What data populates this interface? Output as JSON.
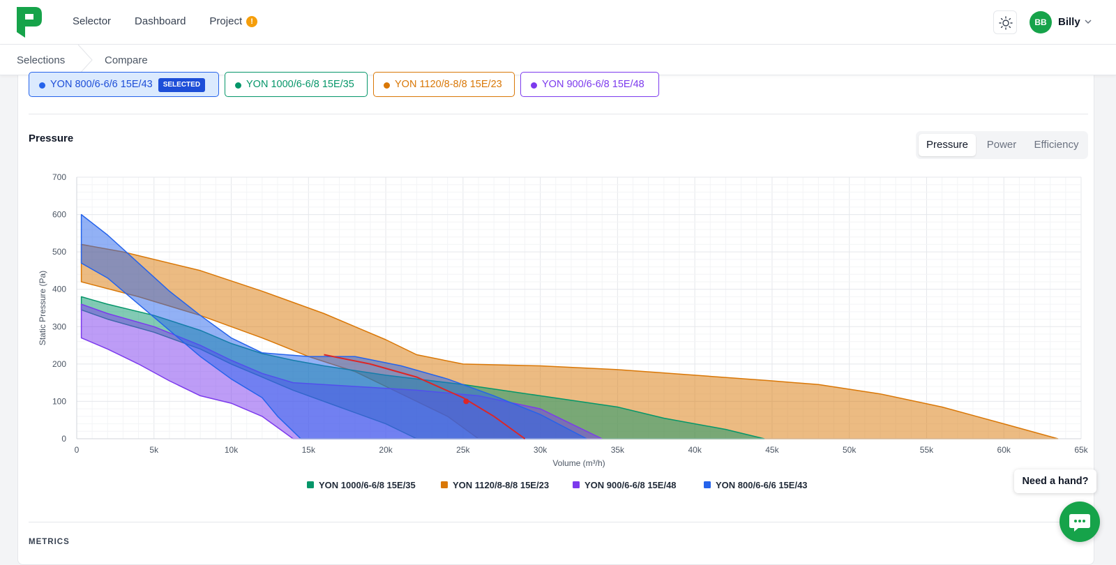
{
  "nav": {
    "selector": "Selector",
    "dashboard": "Dashboard",
    "project": "Project",
    "project_warning": "!"
  },
  "user": {
    "initials": "BB",
    "name": "Billy"
  },
  "breadcrumb": {
    "first": "Selections",
    "second": "Compare"
  },
  "fan_chips": [
    {
      "label": "YON 800/6-6/6 15E/43",
      "badge": "SELECTED",
      "color": "#2563eb"
    },
    {
      "label": "YON 1000/6-6/8 15E/35",
      "color": "#059669"
    },
    {
      "label": "YON 1120/8-8/8 15E/23",
      "color": "#d97706"
    },
    {
      "label": "YON 900/6-6/8 15E/48",
      "color": "#7c3aed"
    }
  ],
  "section": {
    "title": "Pressure"
  },
  "tabs": {
    "pressure": "Pressure",
    "power": "Power",
    "efficiency": "Efficiency"
  },
  "chart_data": {
    "type": "area",
    "title": "",
    "xlabel": "Volume (m³/h)",
    "ylabel": "Static Pressure (Pa)",
    "xlim": [
      0,
      65000
    ],
    "ylim": [
      0,
      700
    ],
    "x_ticks": [
      0,
      5000,
      10000,
      15000,
      20000,
      25000,
      30000,
      35000,
      40000,
      45000,
      50000,
      55000,
      60000,
      65000
    ],
    "x_tick_labels": [
      "0",
      "5k",
      "10k",
      "15k",
      "20k",
      "25k",
      "30k",
      "35k",
      "40k",
      "45k",
      "50k",
      "55k",
      "60k",
      "65k"
    ],
    "y_ticks": [
      0,
      100,
      200,
      300,
      400,
      500,
      600,
      700
    ],
    "y_tick_labels": [
      "0",
      "100",
      "200",
      "300",
      "400",
      "500",
      "600",
      "700"
    ],
    "grid": true,
    "legend_position": "bottom",
    "series": [
      {
        "name": "YON 1000/6-6/8 15E/35",
        "color": "#059669",
        "upper": [
          [
            300,
            380
          ],
          [
            2000,
            360
          ],
          [
            5000,
            330
          ],
          [
            8000,
            290
          ],
          [
            10000,
            255
          ],
          [
            12000,
            228
          ],
          [
            14000,
            210
          ],
          [
            16000,
            195
          ],
          [
            20000,
            170
          ],
          [
            25000,
            145
          ],
          [
            30000,
            115
          ],
          [
            35000,
            85
          ],
          [
            38000,
            55
          ],
          [
            42000,
            25
          ],
          [
            44500,
            0
          ]
        ],
        "lower": [
          [
            300,
            345
          ],
          [
            2000,
            320
          ],
          [
            5000,
            285
          ],
          [
            8000,
            240
          ],
          [
            10000,
            200
          ],
          [
            12000,
            165
          ],
          [
            14000,
            130
          ],
          [
            17000,
            85
          ],
          [
            20000,
            40
          ],
          [
            22000,
            0
          ]
        ]
      },
      {
        "name": "YON 1120/8-8/8 15E/23",
        "color": "#d97706",
        "upper": [
          [
            300,
            520
          ],
          [
            3000,
            500
          ],
          [
            8000,
            450
          ],
          [
            12000,
            395
          ],
          [
            16000,
            335
          ],
          [
            20000,
            265
          ],
          [
            22000,
            225
          ],
          [
            25000,
            200
          ],
          [
            30000,
            195
          ],
          [
            35000,
            185
          ],
          [
            40000,
            170
          ],
          [
            45000,
            155
          ],
          [
            48000,
            145
          ],
          [
            52000,
            120
          ],
          [
            56000,
            85
          ],
          [
            60000,
            40
          ],
          [
            63500,
            0
          ]
        ],
        "lower": [
          [
            300,
            420
          ],
          [
            4000,
            380
          ],
          [
            8000,
            330
          ],
          [
            12000,
            270
          ],
          [
            15000,
            220
          ],
          [
            18000,
            180
          ],
          [
            20000,
            140
          ],
          [
            22000,
            100
          ],
          [
            24000,
            60
          ],
          [
            26000,
            0
          ]
        ]
      },
      {
        "name": "YON 900/6-6/8 15E/48",
        "color": "#7c3aed",
        "upper": [
          [
            300,
            360
          ],
          [
            2000,
            335
          ],
          [
            5000,
            300
          ],
          [
            8000,
            250
          ],
          [
            10000,
            210
          ],
          [
            12000,
            175
          ],
          [
            14000,
            150
          ],
          [
            18000,
            140
          ],
          [
            22000,
            130
          ],
          [
            26000,
            115
          ],
          [
            30000,
            80
          ],
          [
            32000,
            40
          ],
          [
            34000,
            0
          ]
        ],
        "lower": [
          [
            300,
            270
          ],
          [
            2000,
            240
          ],
          [
            4000,
            200
          ],
          [
            6000,
            155
          ],
          [
            8000,
            115
          ],
          [
            10000,
            95
          ],
          [
            12000,
            60
          ],
          [
            13000,
            30
          ],
          [
            14000,
            0
          ]
        ]
      },
      {
        "name": "YON 800/6-6/6 15E/43",
        "color": "#2563eb",
        "upper": [
          [
            300,
            600
          ],
          [
            2000,
            545
          ],
          [
            4000,
            470
          ],
          [
            6000,
            395
          ],
          [
            8000,
            330
          ],
          [
            10000,
            270
          ],
          [
            12000,
            230
          ],
          [
            15000,
            220
          ],
          [
            18000,
            220
          ],
          [
            21000,
            195
          ],
          [
            24000,
            160
          ],
          [
            27000,
            115
          ],
          [
            30000,
            65
          ],
          [
            33000,
            0
          ]
        ],
        "lower": [
          [
            300,
            470
          ],
          [
            2000,
            430
          ],
          [
            4000,
            360
          ],
          [
            6000,
            290
          ],
          [
            8000,
            220
          ],
          [
            10000,
            160
          ],
          [
            12000,
            110
          ],
          [
            13000,
            60
          ],
          [
            14000,
            20
          ],
          [
            14500,
            0
          ]
        ]
      }
    ],
    "system_curve": {
      "color": "#dc2626",
      "points": [
        [
          16000,
          225
        ],
        [
          19000,
          200
        ],
        [
          22000,
          165
        ],
        [
          25000,
          110
        ],
        [
          27000,
          60
        ],
        [
          29000,
          0
        ]
      ]
    },
    "duty_point": {
      "x": 25200,
      "y": 100,
      "color": "#dc2626"
    }
  },
  "help": {
    "bubble": "Need a hand?"
  },
  "metrics": {
    "title": "METRICS"
  }
}
